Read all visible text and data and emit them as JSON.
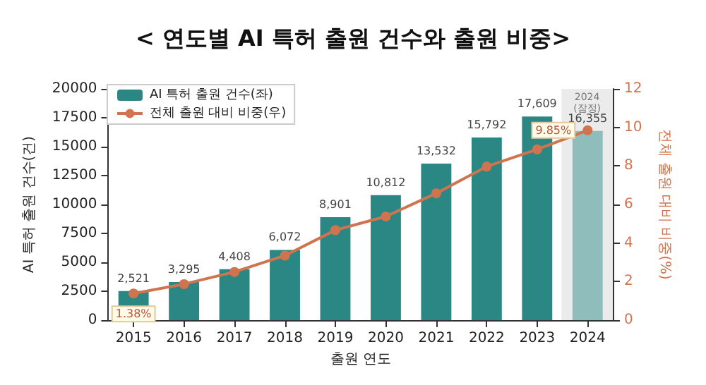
{
  "chart_data": {
    "type": "bar",
    "title": "< 연도별 AI 특허 출원 건수와 출원 비중>",
    "xlabel": "출원 연도",
    "ylabel": "AI 특허 출원 건수(건)",
    "y2label": "전체 출원 대비 비중(%)",
    "categories": [
      "2015",
      "2016",
      "2017",
      "2018",
      "2019",
      "2020",
      "2021",
      "2022",
      "2023",
      "2024"
    ],
    "series": [
      {
        "name": "AI 특허 출원 건수(좌)",
        "type": "bar",
        "color": "#2b8784",
        "colors": [
          "#2b8784",
          "#2b8784",
          "#2b8784",
          "#2b8784",
          "#2b8784",
          "#2b8784",
          "#2b8784",
          "#2b8784",
          "#2b8784",
          "#8fbdbb"
        ],
        "values": [
          2521,
          3295,
          4408,
          6072,
          8901,
          10812,
          13532,
          15792,
          17609,
          16355
        ],
        "value_labels": [
          "2,521",
          "3,295",
          "4,408",
          "6,072",
          "8,901",
          "10,812",
          "13,532",
          "15,792",
          "17,609",
          "16,355"
        ]
      },
      {
        "name": "전체 출원 대비 비중(우)",
        "type": "line",
        "axis": "y2",
        "color": "#d0744f",
        "values": [
          1.38,
          1.87,
          2.5,
          3.35,
          4.67,
          5.38,
          6.58,
          7.97,
          8.86,
          9.85
        ],
        "value_labels": [
          "1.38%",
          null,
          null,
          null,
          null,
          null,
          null,
          null,
          null,
          "9.85%"
        ]
      }
    ],
    "ylim": [
      0,
      20000
    ],
    "yticks": [
      0,
      2500,
      5000,
      7500,
      10000,
      12500,
      15000,
      17500,
      20000
    ],
    "y2lim": [
      0,
      12
    ],
    "y2ticks": [
      0,
      2,
      4,
      6,
      8,
      10,
      12
    ],
    "bands": [
      {
        "axis": "x",
        "from": "2024",
        "to": "2024",
        "label": "2024\n(잠정)",
        "color": "#ebebeb"
      }
    ],
    "legend": "top left",
    "marker": "circle",
    "line_style": "solid",
    "grid": false
  }
}
